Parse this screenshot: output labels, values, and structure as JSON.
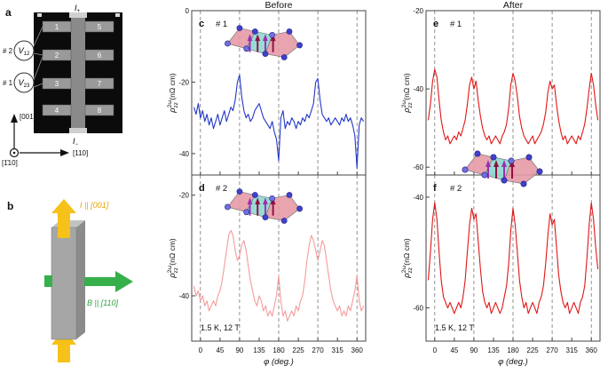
{
  "panel_a": {
    "letter": "a",
    "current_top": {
      "symbol": "I",
      "sub": "+"
    },
    "current_bottom": {
      "symbol": "I",
      "sub": "−"
    },
    "electrodes": [
      "1",
      "2",
      "3",
      "4",
      "5",
      "6",
      "7",
      "8"
    ],
    "voltmeters": [
      {
        "tag": "# 2",
        "symbol": "V",
        "sub": "12"
      },
      {
        "tag": "# 1",
        "symbol": "V",
        "sub": "23"
      }
    ],
    "axis_up": "[001]",
    "axis_right": "[110]",
    "axis_out": "[1̄10]"
  },
  "panel_b": {
    "letter": "b",
    "current_label": "I || [001]",
    "field_label": "B || [110]"
  },
  "chart_data": {
    "type": "line",
    "xlabel": "φ (deg.)",
    "ylabel": {
      "base": "ρ",
      "sup": "2ω",
      "sub": "zz",
      "units": "(nΩ cm)"
    },
    "annotation": "1.5 K, 12 T",
    "xlim": [
      -20,
      380
    ],
    "xticks": [
      0,
      45,
      90,
      135,
      180,
      225,
      270,
      315,
      360
    ],
    "grid_x": [
      0,
      90,
      180,
      270,
      360
    ],
    "x": [
      -15,
      -10,
      -5,
      0,
      5,
      10,
      15,
      20,
      25,
      30,
      35,
      40,
      45,
      50,
      55,
      60,
      65,
      70,
      75,
      80,
      85,
      90,
      95,
      100,
      105,
      110,
      115,
      120,
      125,
      130,
      135,
      140,
      145,
      150,
      155,
      160,
      165,
      170,
      175,
      180,
      185,
      190,
      195,
      200,
      205,
      210,
      215,
      220,
      225,
      230,
      235,
      240,
      245,
      250,
      255,
      260,
      265,
      270,
      275,
      280,
      285,
      290,
      295,
      300,
      305,
      310,
      315,
      320,
      325,
      330,
      335,
      340,
      345,
      350,
      355,
      360,
      365,
      370,
      375
    ],
    "columns": [
      {
        "title": "Before",
        "panels": [
          "c",
          "d"
        ]
      },
      {
        "title": "After",
        "panels": [
          "e",
          "f"
        ]
      }
    ],
    "panels": [
      {
        "id": "c",
        "sample": "# 1",
        "color": "#2238c8",
        "ylim": [
          -46,
          0
        ],
        "yticks": [
          0,
          -20,
          -40
        ],
        "values": [
          -27,
          -29,
          -26,
          -30,
          -28,
          -31,
          -29,
          -32,
          -30,
          -33,
          -31,
          -29,
          -32,
          -30,
          -28,
          -31,
          -29,
          -27,
          -28,
          -25,
          -20,
          -18,
          -24,
          -28,
          -30,
          -29,
          -31,
          -30,
          -28,
          -27,
          -26,
          -28,
          -30,
          -31,
          -32,
          -33,
          -31,
          -34,
          -36,
          -42,
          -30,
          -28,
          -33,
          -31,
          -32,
          -30,
          -31,
          -33,
          -31,
          -32,
          -30,
          -31,
          -29,
          -30,
          -28,
          -26,
          -20,
          -19,
          -25,
          -29,
          -30,
          -31,
          -30,
          -32,
          -31,
          -30,
          -31,
          -32,
          -30,
          -31,
          -29,
          -31,
          -30,
          -32,
          -35,
          -44,
          -32,
          -30,
          -31
        ]
      },
      {
        "id": "d",
        "sample": "# 2",
        "color": "#f59b9b",
        "ylim": [
          -49,
          -16
        ],
        "yticks": [
          -20,
          -40
        ],
        "values": [
          -38,
          -40,
          -39,
          -41,
          -40,
          -42,
          -41,
          -43,
          -42,
          -41,
          -42,
          -40,
          -39,
          -37,
          -34,
          -31,
          -28,
          -27,
          -28,
          -31,
          -33,
          -32,
          -30,
          -29,
          -31,
          -34,
          -37,
          -39,
          -41,
          -42,
          -40,
          -41,
          -43,
          -42,
          -44,
          -43,
          -44,
          -42,
          -40,
          -36,
          -41,
          -44,
          -43,
          -45,
          -44,
          -43,
          -44,
          -42,
          -43,
          -41,
          -40,
          -37,
          -33,
          -30,
          -28,
          -29,
          -31,
          -33,
          -31,
          -29,
          -30,
          -33,
          -36,
          -39,
          -41,
          -42,
          -43,
          -42,
          -44,
          -43,
          -44,
          -42,
          -43,
          -41,
          -39,
          -36,
          -41,
          -43,
          -42
        ]
      },
      {
        "id": "e",
        "sample": "# 1",
        "color": "#e01616",
        "ylim": [
          -62,
          -20
        ],
        "yticks": [
          -20,
          -40,
          -60
        ],
        "values": [
          -48,
          -44,
          -38,
          -35,
          -37,
          -43,
          -48,
          -51,
          -53,
          -52,
          -54,
          -53,
          -52,
          -53,
          -51,
          -52,
          -50,
          -48,
          -44,
          -39,
          -37,
          -40,
          -38,
          -43,
          -47,
          -50,
          -52,
          -53,
          -52,
          -54,
          -53,
          -52,
          -53,
          -54,
          -52,
          -51,
          -49,
          -45,
          -39,
          -36,
          -38,
          -42,
          -47,
          -50,
          -52,
          -53,
          -54,
          -53,
          -52,
          -54,
          -53,
          -52,
          -51,
          -49,
          -46,
          -41,
          -38,
          -40,
          -39,
          -44,
          -48,
          -51,
          -53,
          -52,
          -54,
          -53,
          -52,
          -53,
          -54,
          -52,
          -53,
          -51,
          -49,
          -45,
          -40,
          -36,
          -39,
          -44,
          -48
        ]
      },
      {
        "id": "f",
        "sample": "# 2",
        "color": "#e01616",
        "ylim": [
          -66,
          -36
        ],
        "yticks": [
          -40,
          -60
        ],
        "values": [
          -55,
          -50,
          -44,
          -41,
          -44,
          -50,
          -55,
          -58,
          -59,
          -60,
          -59,
          -60,
          -61,
          -60,
          -59,
          -60,
          -58,
          -55,
          -50,
          -45,
          -42,
          -44,
          -43,
          -48,
          -53,
          -57,
          -59,
          -60,
          -59,
          -61,
          -60,
          -59,
          -60,
          -61,
          -60,
          -58,
          -56,
          -52,
          -46,
          -42,
          -45,
          -50,
          -55,
          -58,
          -60,
          -59,
          -61,
          -60,
          -59,
          -60,
          -61,
          -59,
          -58,
          -56,
          -52,
          -47,
          -43,
          -45,
          -44,
          -49,
          -54,
          -57,
          -59,
          -60,
          -59,
          -61,
          -60,
          -59,
          -60,
          -61,
          -59,
          -58,
          -56,
          -51,
          -45,
          -41,
          -44,
          -49,
          -53
        ]
      }
    ]
  }
}
